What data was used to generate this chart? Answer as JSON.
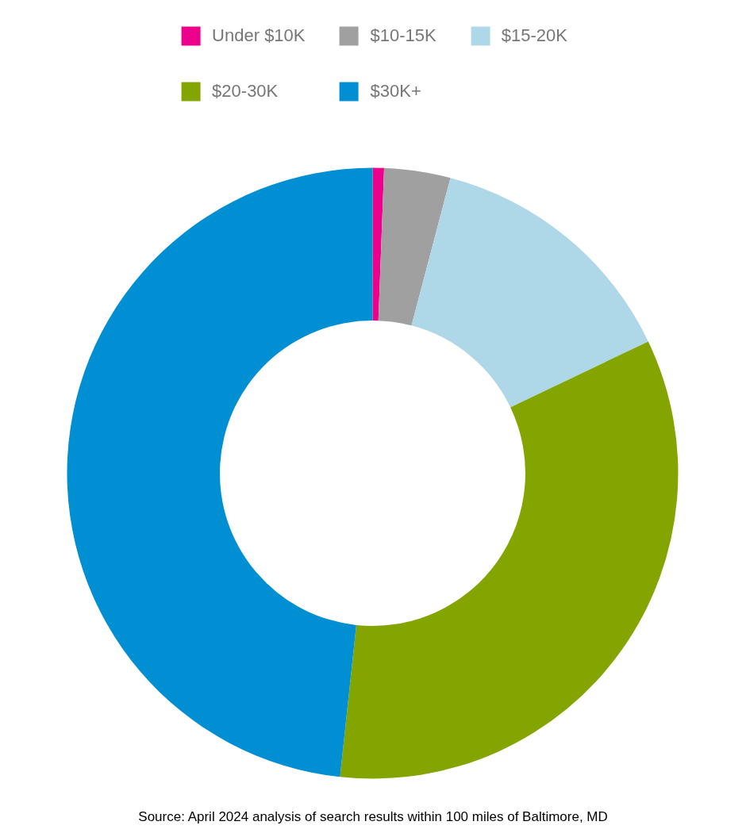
{
  "chart_data": {
    "type": "donut",
    "categories": [
      "Under $10K",
      "$10-15K",
      "$15-20K",
      "$20-30K",
      "$30K+"
    ],
    "values": [
      0.6,
      3.5,
      13.8,
      33.8,
      48.3
    ],
    "colors": [
      "#ec008c",
      "#a0a0a0",
      "#aed8e8",
      "#84a500",
      "#008fd3"
    ],
    "legend": "top",
    "annotations": [
      "Source: April 2024 analysis of search results within 100 miles of Baltimore, MD"
    ]
  }
}
